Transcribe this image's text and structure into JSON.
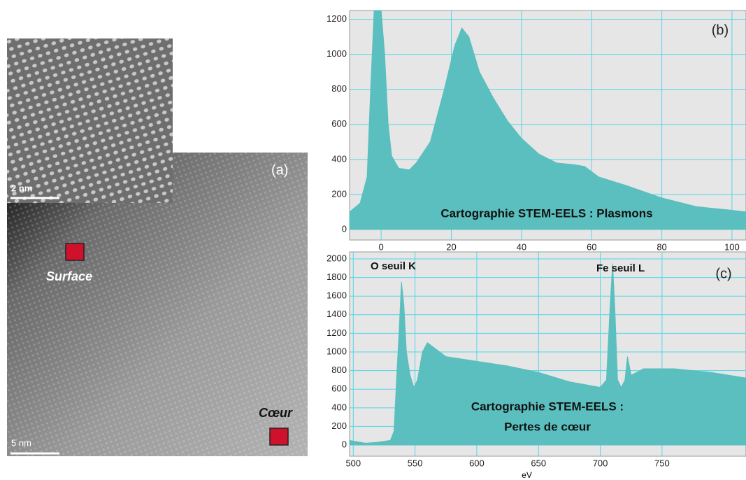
{
  "image": {
    "label": "(a)",
    "inset_scale": "2 nm",
    "scale": "5 nm",
    "markers": [
      {
        "label": "Surface"
      },
      {
        "label": "Cœur"
      }
    ]
  },
  "chart_data": [
    {
      "type": "area",
      "label": "(b)",
      "annotations": [
        "Cartographie STEM-EELS : Plasmons"
      ],
      "x": [
        -9,
        -6,
        -4,
        -3,
        -2,
        0,
        1,
        2,
        3,
        5,
        8,
        10,
        14,
        18,
        21,
        23,
        25,
        28,
        32,
        36,
        40,
        45,
        50,
        55,
        58,
        62,
        70,
        80,
        90,
        100,
        104
      ],
      "values": [
        100,
        150,
        300,
        800,
        1250,
        1250,
        1000,
        600,
        420,
        350,
        340,
        380,
        500,
        800,
        1050,
        1150,
        1100,
        900,
        750,
        620,
        520,
        430,
        380,
        370,
        360,
        300,
        250,
        180,
        130,
        110,
        100
      ],
      "color": "#5bbfbf",
      "xlim": [
        -9,
        104
      ],
      "ylim": [
        -60,
        1250
      ],
      "xticks": [
        0,
        20,
        40,
        60,
        80,
        100
      ],
      "yticks": [
        0,
        200,
        400,
        600,
        800,
        1000,
        1200
      ],
      "grid": true
    },
    {
      "type": "area",
      "label": "(c)",
      "xlabel": "eV",
      "annotations": [
        "O seuil K",
        "Fe seuil L",
        "Cartographie STEM-EELS :",
        "Pertes de cœur"
      ],
      "x": [
        497,
        510,
        520,
        530,
        533,
        535,
        537,
        539,
        541,
        543,
        546,
        549,
        552,
        556,
        560,
        565,
        575,
        600,
        625,
        650,
        675,
        700,
        705,
        708,
        710,
        712,
        714,
        717,
        720,
        722,
        725,
        735,
        760,
        790,
        818
      ],
      "values": [
        50,
        20,
        30,
        50,
        150,
        700,
        1200,
        1750,
        1500,
        1000,
        750,
        620,
        700,
        1000,
        1100,
        1050,
        950,
        900,
        850,
        780,
        680,
        620,
        700,
        1500,
        1950,
        1400,
        700,
        620,
        700,
        950,
        750,
        820,
        820,
        780,
        720
      ],
      "color": "#5bbfbf",
      "xlim": [
        497,
        818
      ],
      "ylim": [
        -120,
        2075
      ],
      "xticks": [
        500,
        550,
        600,
        650,
        700,
        750
      ],
      "yticks": [
        0,
        200,
        400,
        600,
        800,
        1000,
        1200,
        1400,
        1600,
        1800,
        2000
      ],
      "grid": true
    }
  ]
}
